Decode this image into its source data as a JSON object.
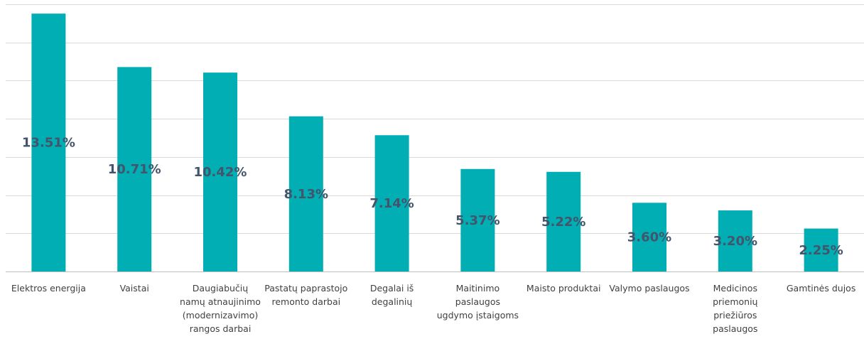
{
  "chart_data": {
    "type": "bar",
    "categories": [
      "Elektros energija",
      "Vaistai",
      "Daugiabučių namų atnaujinimo (modernizavimo) rangos darbai",
      "Pastatų paprastojo remonto darbai",
      "Degalai iš degalinių",
      "Maitinimo paslaugos ugdymo įstaigoms",
      "Maisto produktai",
      "Valymo paslaugos",
      "Medicinos priemonių priežiūros paslaugos",
      "Gamtinės dujos"
    ],
    "category_lines": [
      [
        "Elektros energija"
      ],
      [
        "Vaistai"
      ],
      [
        "Daugiabučių",
        "namų atnaujinimo",
        "(modernizavimo)",
        "rangos darbai"
      ],
      [
        "Pastatų paprastojo",
        "remonto darbai"
      ],
      [
        "Degalai iš",
        "degalinių"
      ],
      [
        "Maitinimo",
        "paslaugos",
        "ugdymo įstaigoms"
      ],
      [
        "Maisto produktai"
      ],
      [
        "Valymo paslaugos"
      ],
      [
        "Medicinos",
        "priemonių",
        "priežiūros",
        "paslaugos"
      ],
      [
        "Gamtinės dujos"
      ]
    ],
    "values": [
      13.51,
      10.71,
      10.42,
      8.13,
      7.14,
      5.37,
      5.22,
      3.6,
      3.2,
      2.25
    ],
    "data_labels": [
      "13.51%",
      "10.71%",
      "10.42%",
      "8.13%",
      "7.14%",
      "5.37%",
      "5.22%",
      "3.60%",
      "3.20%",
      "2.25%"
    ],
    "title": "",
    "xlabel": "",
    "ylabel": "",
    "ylim": [
      0,
      14
    ],
    "gridlines": [
      0,
      2,
      4,
      6,
      8,
      10,
      12,
      14
    ],
    "grid": true,
    "legend": "none"
  },
  "colors": {
    "bar": "#00aeb3",
    "data_label": "#44546a",
    "gridline": "#d9d9d9",
    "category_text": "#404040"
  }
}
